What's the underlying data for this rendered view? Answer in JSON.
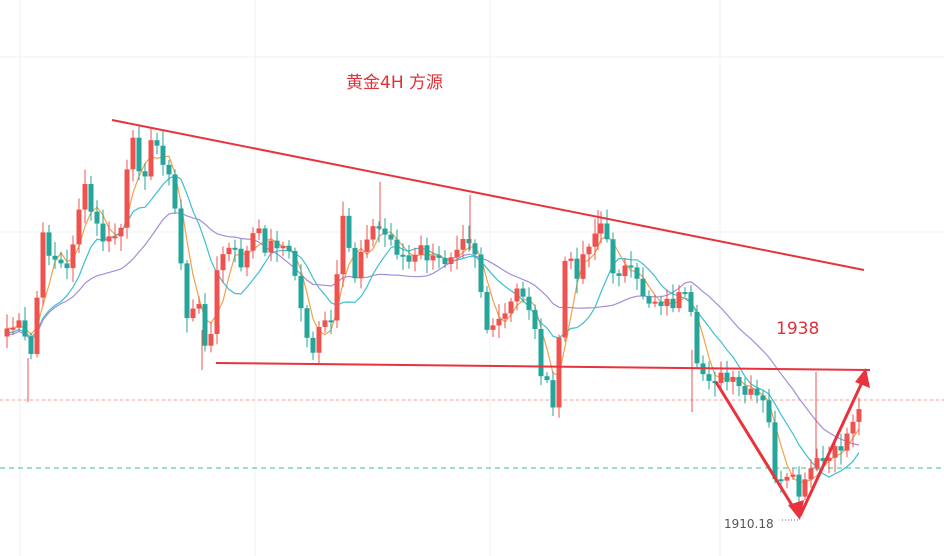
{
  "chart_data": {
    "type": "candlestick",
    "title": "黄金4H 方源",
    "level_label": "1938",
    "low_label": "1910.18",
    "colors": {
      "up": "#ef5350",
      "down": "#26a69a",
      "trendline": "#e8323c",
      "ma_fast": "#f5a04a",
      "ma_mid": "#3cc0cf",
      "ma_slow": "#a58cd9",
      "dashed_red": "#f2a0a0",
      "dashed_green": "#5ccfb0"
    },
    "annotations": [
      {
        "kind": "descending-trendline"
      },
      {
        "kind": "horizontal-support"
      },
      {
        "kind": "arrow-down"
      },
      {
        "kind": "arrow-up"
      }
    ],
    "grid": true,
    "legend": "none"
  }
}
